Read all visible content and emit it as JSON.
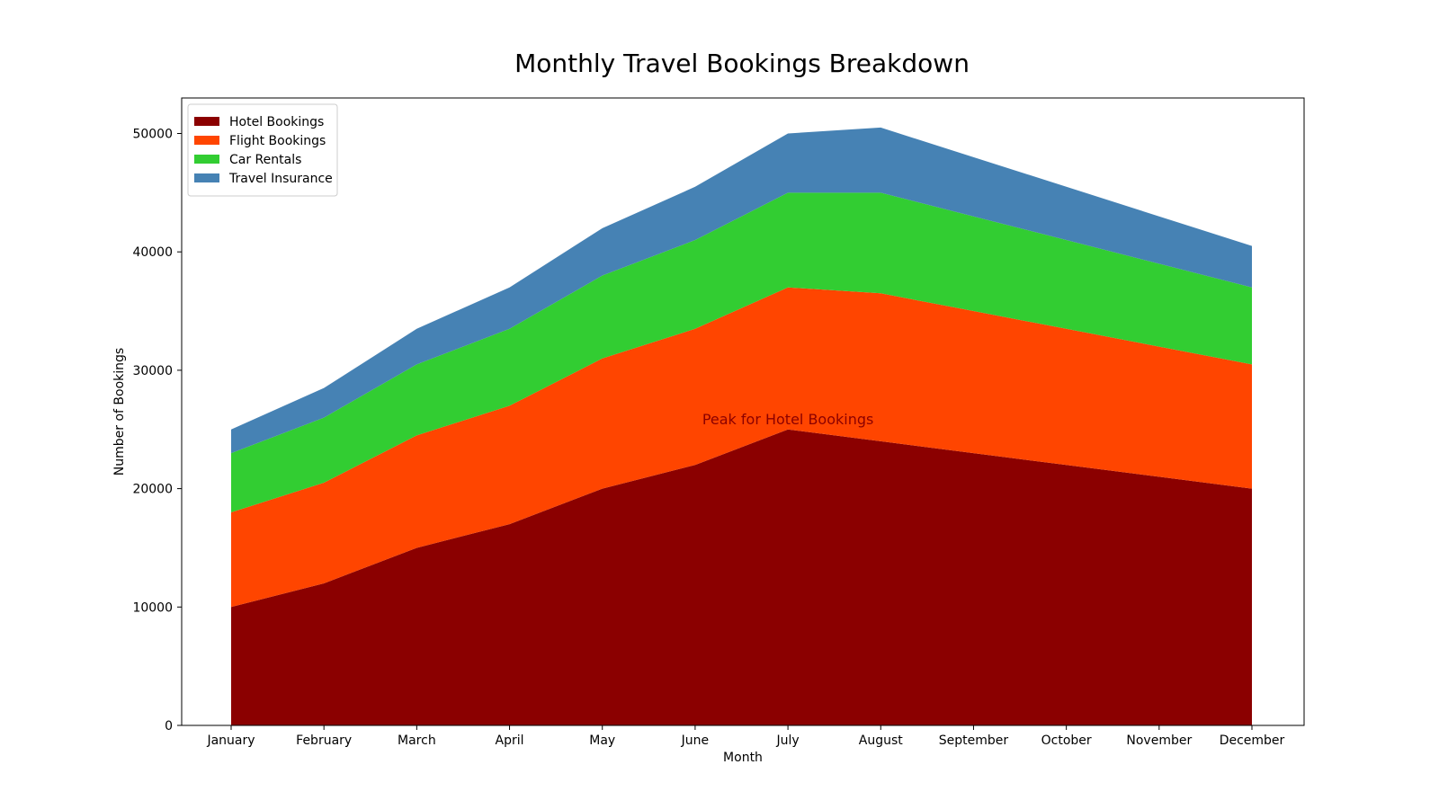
{
  "chart_data": {
    "type": "area",
    "stacked": true,
    "title": "Monthly Travel Bookings Breakdown",
    "xlabel": "Month",
    "ylabel": "Number of Bookings",
    "categories": [
      "January",
      "February",
      "March",
      "April",
      "May",
      "June",
      "July",
      "August",
      "September",
      "October",
      "November",
      "December"
    ],
    "ylim": [
      0,
      53000
    ],
    "yticks": [
      0,
      10000,
      20000,
      30000,
      40000,
      50000
    ],
    "series": [
      {
        "name": "Hotel Bookings",
        "color": "#8b0000",
        "values": [
          10000,
          12000,
          15000,
          17000,
          20000,
          22000,
          25000,
          24000,
          23000,
          22000,
          21000,
          20000
        ]
      },
      {
        "name": "Flight Bookings",
        "color": "#ff4500",
        "values": [
          8000,
          8500,
          9500,
          10000,
          11000,
          11500,
          12000,
          12500,
          12000,
          11500,
          11000,
          10500
        ]
      },
      {
        "name": "Car Rentals",
        "color": "#32cd32",
        "values": [
          5000,
          5500,
          6000,
          6500,
          7000,
          7500,
          8000,
          8500,
          8000,
          7500,
          7000,
          6500
        ]
      },
      {
        "name": "Travel Insurance",
        "color": "#4682b4",
        "values": [
          2000,
          2500,
          3000,
          3500,
          4000,
          4500,
          5000,
          5500,
          5000,
          4500,
          4000,
          3500
        ]
      }
    ],
    "legend": {
      "position": "upper-left"
    },
    "grid": false,
    "annotations": [
      {
        "text": "Peak for Hotel Bookings",
        "x": "July",
        "y": 25000,
        "color": "#8b0000"
      }
    ]
  }
}
